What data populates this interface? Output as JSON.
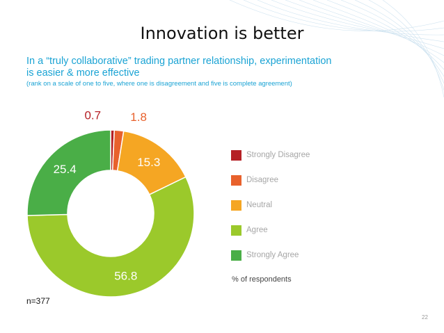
{
  "slide": {
    "title": "Innovation is better",
    "subtitle": "In a “truly collaborative” trading partner relationship, experimentation is easier & more effective",
    "note": "(rank on a scale of one to five, where one is disagreement and five is complete agreement)",
    "sample_size": "n=377",
    "page_number": "22",
    "unit_label": "% of respondents"
  },
  "chart_data": {
    "type": "pie",
    "donut": true,
    "title": "",
    "categories": [
      "Strongly Disagree",
      "Disagree",
      "Neutral",
      "Agree",
      "Strongly Agree"
    ],
    "values": [
      0.7,
      1.8,
      15.3,
      56.8,
      25.4
    ],
    "data_labels": [
      "0.7",
      "1.8",
      "15.3",
      "56.8",
      "25.4"
    ],
    "colors": [
      "#b52025",
      "#e8612c",
      "#f5a623",
      "#9bc92b",
      "#4aae47"
    ],
    "label_colors": [
      "#b52025",
      "#e8612c",
      "#ffffff",
      "#ffffff",
      "#ffffff"
    ],
    "legend_position": "right",
    "start_angle": "top, clockwise"
  },
  "legend": {
    "items": [
      {
        "label": "Strongly Disagree",
        "color": "#b52025"
      },
      {
        "label": "Disagree",
        "color": "#e8612c"
      },
      {
        "label": "Neutral",
        "color": "#f5a623"
      },
      {
        "label": "Agree",
        "color": "#9bc92b"
      },
      {
        "label": "Strongly Agree",
        "color": "#4aae47"
      }
    ]
  }
}
